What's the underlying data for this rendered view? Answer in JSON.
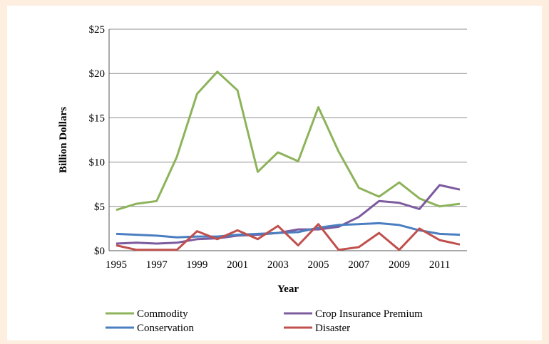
{
  "chart_data": {
    "type": "line",
    "title": "",
    "xlabel": "Year",
    "ylabel": "Billion Dollars",
    "x": [
      1995,
      1996,
      1997,
      1998,
      1999,
      2000,
      2001,
      2002,
      2003,
      2004,
      2005,
      2006,
      2007,
      2008,
      2009,
      2010,
      2011,
      2012
    ],
    "x_tick_labels": [
      "1995",
      "1997",
      "1999",
      "2001",
      "2003",
      "2005",
      "2007",
      "2009",
      "2011"
    ],
    "y_tick_labels": [
      "$0",
      "$5",
      "$10",
      "$15",
      "$20",
      "$25"
    ],
    "ylim": [
      0,
      25
    ],
    "grid": true,
    "legend_position": "bottom",
    "series": [
      {
        "name": "Commodity",
        "color": "#8db35a",
        "values": [
          4.6,
          5.3,
          5.6,
          10.6,
          17.7,
          20.2,
          18.1,
          8.9,
          11.1,
          10.1,
          16.2,
          11.2,
          7.1,
          6.1,
          7.7,
          5.9,
          5.0,
          5.3
        ]
      },
      {
        "name": "Crop Insurance Premium",
        "color": "#7c5b9e",
        "values": [
          0.8,
          0.9,
          0.8,
          0.9,
          1.3,
          1.4,
          1.7,
          1.8,
          2.0,
          2.4,
          2.4,
          2.7,
          3.8,
          5.6,
          5.4,
          4.7,
          7.4,
          6.9
        ]
      },
      {
        "name": "Conservation",
        "color": "#4a7ec0",
        "values": [
          1.9,
          1.8,
          1.7,
          1.5,
          1.6,
          1.6,
          1.8,
          1.9,
          2.0,
          2.1,
          2.6,
          2.9,
          3.0,
          3.1,
          2.9,
          2.3,
          1.9,
          1.8
        ]
      },
      {
        "name": "Disaster",
        "color": "#c0504d",
        "values": [
          0.6,
          0.1,
          0.1,
          0.1,
          2.2,
          1.3,
          2.3,
          1.3,
          2.8,
          0.6,
          3.0,
          0.1,
          0.4,
          2.0,
          0.1,
          2.5,
          1.2,
          0.7
        ]
      }
    ]
  }
}
